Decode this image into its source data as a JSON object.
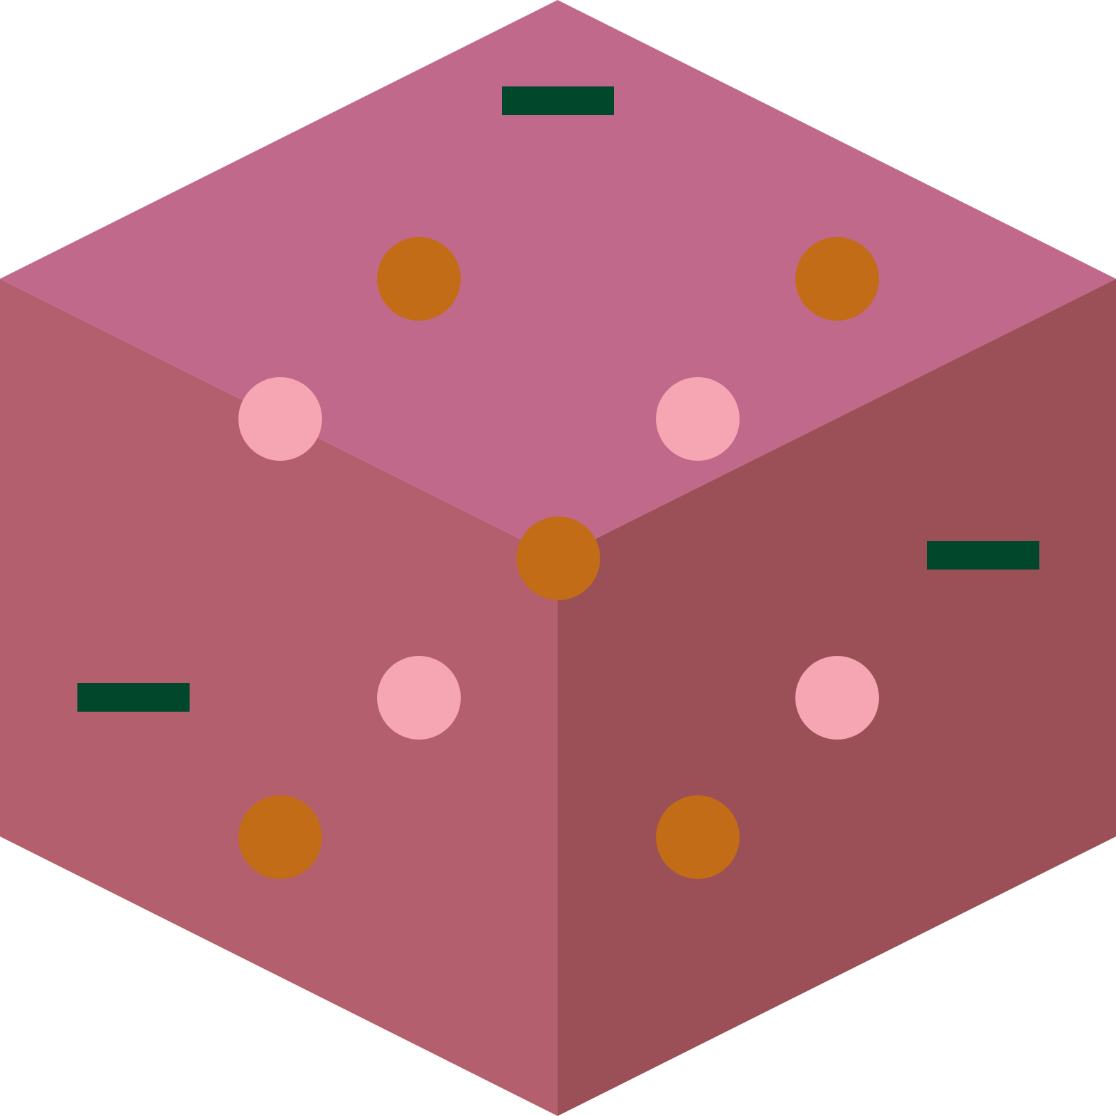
{
  "illustration": {
    "subject": "isometric-cube-cake",
    "colors": {
      "background": "#ffffff",
      "top_face": "#c0698a",
      "left_face": "#b45f6d",
      "right_face": "#9a5056",
      "orange_dot": "#c26c17",
      "pink_dot": "#f6a5b3",
      "green_bar": "#00472c"
    },
    "counts": {
      "orange_dots": 5,
      "pink_dots": 4,
      "green_bars": 3
    }
  }
}
